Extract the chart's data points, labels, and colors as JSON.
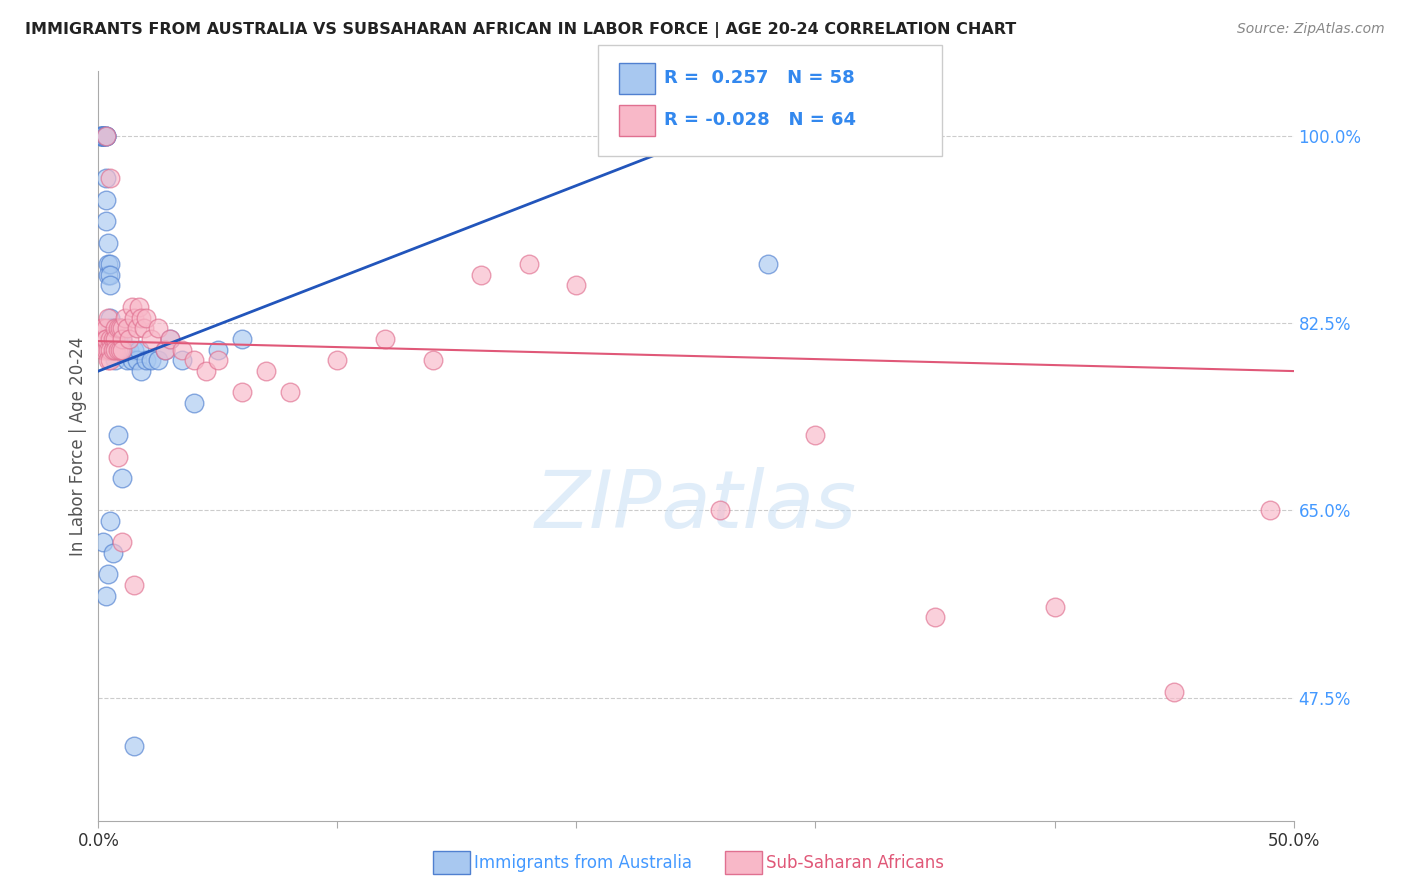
{
  "title": "IMMIGRANTS FROM AUSTRALIA VS SUBSAHARAN AFRICAN IN LABOR FORCE | AGE 20-24 CORRELATION CHART",
  "source": "Source: ZipAtlas.com",
  "ylabel": "In Labor Force | Age 20-24",
  "x_ticks": [
    0.0,
    0.1,
    0.2,
    0.3,
    0.4,
    0.5
  ],
  "x_tick_labels": [
    "0.0%",
    "",
    "",
    "",
    "",
    "50.0%"
  ],
  "y_ticks": [
    0.475,
    0.65,
    0.825,
    1.0
  ],
  "y_tick_labels": [
    "47.5%",
    "65.0%",
    "82.5%",
    "100.0%"
  ],
  "xlim": [
    0.0,
    0.5
  ],
  "ylim": [
    0.36,
    1.06
  ],
  "legend_R1": "0.257",
  "legend_N1": "58",
  "legend_R2": "-0.028",
  "legend_N2": "64",
  "legend_label1": "Immigrants from Australia",
  "legend_label2": "Sub-Saharan Africans",
  "blue_color": "#A8C8F0",
  "blue_edge_color": "#5080D0",
  "blue_line_color": "#2255BB",
  "pink_color": "#F8B8C8",
  "pink_edge_color": "#E07090",
  "pink_line_color": "#E05878",
  "australia_x": [
    0.001,
    0.001,
    0.001,
    0.002,
    0.002,
    0.002,
    0.002,
    0.003,
    0.003,
    0.003,
    0.003,
    0.003,
    0.003,
    0.004,
    0.004,
    0.004,
    0.005,
    0.005,
    0.005,
    0.005,
    0.005,
    0.005,
    0.006,
    0.006,
    0.007,
    0.007,
    0.007,
    0.008,
    0.008,
    0.009,
    0.009,
    0.01,
    0.011,
    0.012,
    0.013,
    0.014,
    0.015,
    0.016,
    0.017,
    0.018,
    0.02,
    0.022,
    0.025,
    0.028,
    0.03,
    0.035,
    0.04,
    0.05,
    0.06,
    0.002,
    0.003,
    0.004,
    0.005,
    0.006,
    0.008,
    0.01,
    0.015,
    0.28
  ],
  "australia_y": [
    1.0,
    1.0,
    1.0,
    1.0,
    1.0,
    1.0,
    1.0,
    1.0,
    1.0,
    1.0,
    0.96,
    0.94,
    0.92,
    0.9,
    0.88,
    0.87,
    0.88,
    0.87,
    0.86,
    0.83,
    0.82,
    0.81,
    0.82,
    0.8,
    0.82,
    0.81,
    0.79,
    0.81,
    0.8,
    0.82,
    0.8,
    0.81,
    0.8,
    0.79,
    0.8,
    0.79,
    0.8,
    0.79,
    0.8,
    0.78,
    0.79,
    0.79,
    0.79,
    0.8,
    0.81,
    0.79,
    0.75,
    0.8,
    0.81,
    0.62,
    0.57,
    0.59,
    0.64,
    0.61,
    0.72,
    0.68,
    0.43,
    0.88
  ],
  "subsaharan_x": [
    0.001,
    0.002,
    0.002,
    0.002,
    0.003,
    0.003,
    0.003,
    0.003,
    0.004,
    0.004,
    0.004,
    0.005,
    0.005,
    0.005,
    0.006,
    0.006,
    0.007,
    0.007,
    0.007,
    0.008,
    0.008,
    0.009,
    0.009,
    0.01,
    0.01,
    0.01,
    0.011,
    0.012,
    0.013,
    0.014,
    0.015,
    0.016,
    0.017,
    0.018,
    0.019,
    0.02,
    0.022,
    0.025,
    0.028,
    0.03,
    0.035,
    0.04,
    0.045,
    0.05,
    0.06,
    0.07,
    0.08,
    0.1,
    0.12,
    0.14,
    0.16,
    0.18,
    0.2,
    0.26,
    0.3,
    0.35,
    0.4,
    0.45,
    0.49,
    0.003,
    0.005,
    0.008,
    0.01,
    0.015
  ],
  "subsaharan_y": [
    0.82,
    0.81,
    0.82,
    0.8,
    0.82,
    0.81,
    0.8,
    0.81,
    0.83,
    0.8,
    0.79,
    0.81,
    0.8,
    0.79,
    0.81,
    0.8,
    0.82,
    0.81,
    0.8,
    0.82,
    0.8,
    0.82,
    0.8,
    0.82,
    0.81,
    0.8,
    0.83,
    0.82,
    0.81,
    0.84,
    0.83,
    0.82,
    0.84,
    0.83,
    0.82,
    0.83,
    0.81,
    0.82,
    0.8,
    0.81,
    0.8,
    0.79,
    0.78,
    0.79,
    0.76,
    0.78,
    0.76,
    0.79,
    0.81,
    0.79,
    0.87,
    0.88,
    0.86,
    0.65,
    0.72,
    0.55,
    0.56,
    0.48,
    0.65,
    1.0,
    0.96,
    0.7,
    0.62,
    0.58
  ],
  "blue_line_x0": 0.0,
  "blue_line_y0": 0.78,
  "blue_line_x1": 0.3,
  "blue_line_y1": 1.04,
  "pink_line_x0": 0.0,
  "pink_line_y0": 0.808,
  "pink_line_x1": 0.5,
  "pink_line_y1": 0.78,
  "watermark_text": "ZIPatlas",
  "background_color": "#FFFFFF",
  "grid_color": "#CCCCCC"
}
